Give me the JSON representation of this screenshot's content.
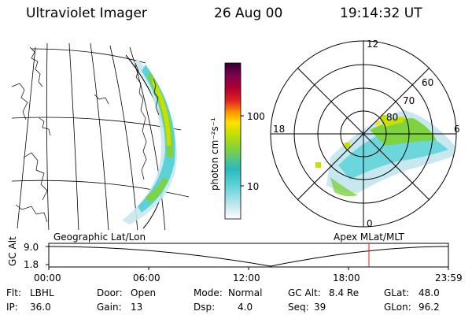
{
  "header": {
    "instrument": "Ultraviolet Imager",
    "date": "26 Aug 00",
    "time": "19:14:32 UT"
  },
  "colorbar": {
    "unit_label": "photon cm⁻²s⁻¹",
    "ticks": [
      {
        "label": "100",
        "value": 100
      },
      {
        "label": "10",
        "value": 10
      }
    ],
    "colors": [
      "#ffffff",
      "#c8e8f0",
      "#5ad2d8",
      "#2bb8c0",
      "#7fd240",
      "#c8e000",
      "#ffe000",
      "#ff9a00",
      "#e02020",
      "#b00030",
      "#800050",
      "#300030"
    ]
  },
  "geo_map": {
    "caption": "Geographic Lat/Lon"
  },
  "polar_plot": {
    "caption": "Apex MLat/MLT",
    "lat_labels": [
      "80",
      "70",
      "60"
    ],
    "mlt_labels": {
      "top": "12",
      "left": "18",
      "right": "6",
      "bottom": "0"
    }
  },
  "altitude_strip": {
    "y_label": "GC Alt",
    "y_ticks": [
      "9.0",
      "1.8"
    ],
    "x_ticks": [
      "00:00",
      "06:00",
      "12:00",
      "18:00",
      "23:59"
    ],
    "current_time_marker_hour": 19.24
  },
  "status": {
    "flt": {
      "label": "Flt:",
      "value": "LBHL"
    },
    "ip": {
      "label": "IP:",
      "value": "36.0"
    },
    "door": {
      "label": "Door:",
      "value": "Open"
    },
    "gain": {
      "label": "Gain:",
      "value": "13"
    },
    "mode": {
      "label": "Mode:",
      "value": "Normal"
    },
    "dsp": {
      "label": "Dsp:",
      "value": "4.0"
    },
    "gcalt": {
      "label": "GC Alt:",
      "value": "8.4 Re"
    },
    "seq": {
      "label": "Seq:",
      "value": "39"
    },
    "glat": {
      "label": "GLat:",
      "value": "48.0"
    },
    "glon": {
      "label": "GLon:",
      "value": "96.2"
    }
  }
}
